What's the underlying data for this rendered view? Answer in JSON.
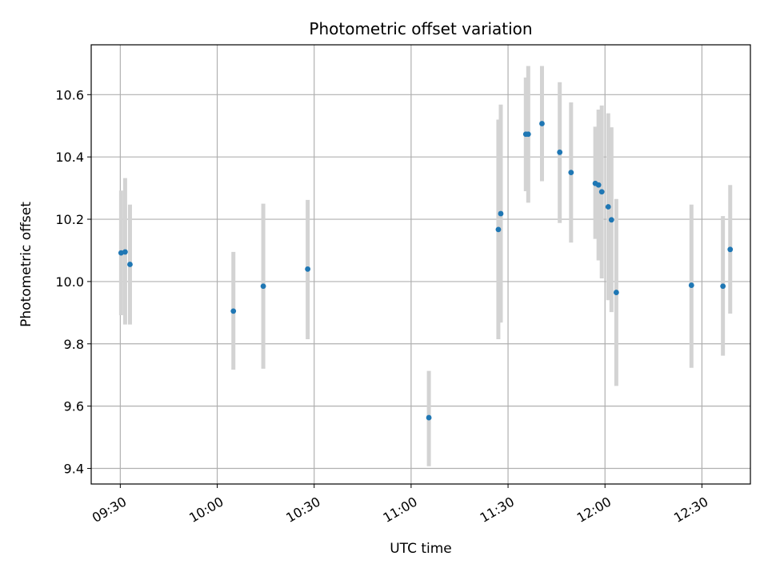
{
  "chart_data": {
    "type": "scatter",
    "title": "Photometric offset variation",
    "xlabel": "UTC time",
    "ylabel": "Photometric offset",
    "xlim": [
      "09:21",
      "12:45"
    ],
    "ylim": [
      9.35,
      10.76
    ],
    "x_ticks": [
      "09:30",
      "10:00",
      "10:30",
      "11:00",
      "11:30",
      "12:00",
      "12:30"
    ],
    "y_ticks": [
      "9.4",
      "9.6",
      "9.8",
      "10.0",
      "10.2",
      "10.4",
      "10.6"
    ],
    "y_tick_values": [
      9.4,
      9.6,
      9.8,
      10.0,
      10.2,
      10.4,
      10.6
    ],
    "grid": true,
    "marker_color": "#1f77b4",
    "errorbar_color": "#d3d3d3",
    "points": [
      {
        "x": "09:30:15",
        "y": 10.092,
        "err_low": 9.892,
        "err_high": 10.292
      },
      {
        "x": "09:31:30",
        "y": 10.095,
        "err_low": 9.862,
        "err_high": 10.332
      },
      {
        "x": "09:33:00",
        "y": 10.055,
        "err_low": 9.862,
        "err_high": 10.247
      },
      {
        "x": "10:05:00",
        "y": 9.905,
        "err_low": 9.717,
        "err_high": 10.095
      },
      {
        "x": "10:14:15",
        "y": 9.985,
        "err_low": 9.72,
        "err_high": 10.25
      },
      {
        "x": "10:28:00",
        "y": 10.04,
        "err_low": 9.815,
        "err_high": 10.262
      },
      {
        "x": "11:05:30",
        "y": 9.563,
        "err_low": 9.407,
        "err_high": 9.713
      },
      {
        "x": "11:27:00",
        "y": 10.167,
        "err_low": 9.815,
        "err_high": 10.52
      },
      {
        "x": "11:27:45",
        "y": 10.218,
        "err_low": 9.868,
        "err_high": 10.568
      },
      {
        "x": "11:35:30",
        "y": 10.473,
        "err_low": 10.29,
        "err_high": 10.655
      },
      {
        "x": "11:36:15",
        "y": 10.473,
        "err_low": 10.253,
        "err_high": 10.692
      },
      {
        "x": "11:40:30",
        "y": 10.507,
        "err_low": 10.322,
        "err_high": 10.692
      },
      {
        "x": "11:46:00",
        "y": 10.415,
        "err_low": 10.188,
        "err_high": 10.64
      },
      {
        "x": "11:49:30",
        "y": 10.35,
        "err_low": 10.125,
        "err_high": 10.575
      },
      {
        "x": "11:57:00",
        "y": 10.315,
        "err_low": 10.137,
        "err_high": 10.497
      },
      {
        "x": "11:58:00",
        "y": 10.31,
        "err_low": 10.068,
        "err_high": 10.552
      },
      {
        "x": "11:59:00",
        "y": 10.288,
        "err_low": 10.01,
        "err_high": 10.565
      },
      {
        "x": "12:01:00",
        "y": 10.24,
        "err_low": 9.94,
        "err_high": 10.54
      },
      {
        "x": "12:02:00",
        "y": 10.198,
        "err_low": 9.902,
        "err_high": 10.495
      },
      {
        "x": "12:03:30",
        "y": 9.965,
        "err_low": 9.665,
        "err_high": 10.265
      },
      {
        "x": "12:26:45",
        "y": 9.988,
        "err_low": 9.723,
        "err_high": 10.247
      },
      {
        "x": "12:36:30",
        "y": 9.985,
        "err_low": 9.762,
        "err_high": 10.21
      },
      {
        "x": "12:38:45",
        "y": 10.103,
        "err_low": 9.897,
        "err_high": 10.31
      }
    ]
  }
}
